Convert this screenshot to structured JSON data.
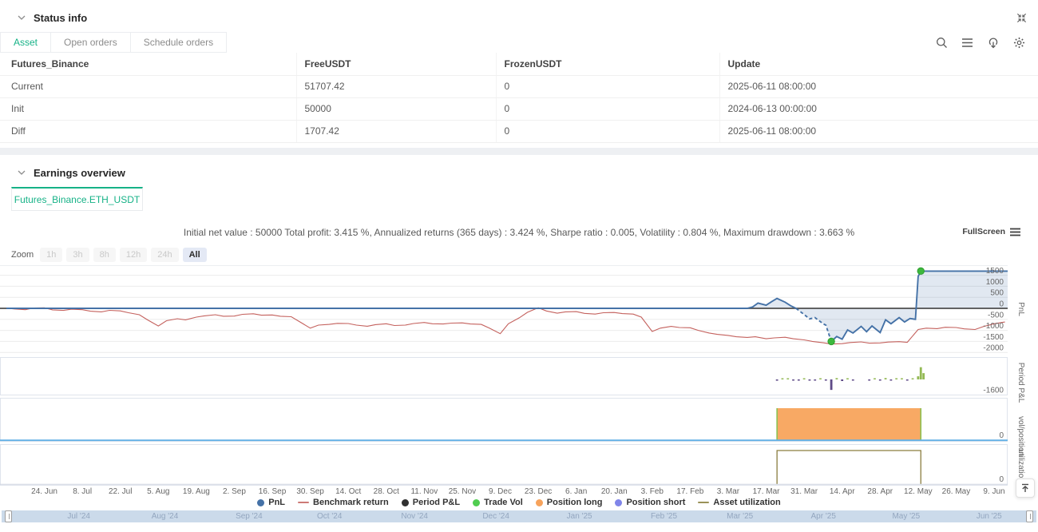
{
  "accent": "#16b287",
  "status_section": {
    "title": "Status info",
    "tabs": [
      {
        "label": "Asset",
        "active": true
      },
      {
        "label": "Open orders",
        "active": false
      },
      {
        "label": "Schedule orders",
        "active": false
      }
    ],
    "toolbar_icons": [
      "search-icon",
      "list-icon",
      "cloud-download-icon",
      "settings-icon"
    ],
    "expand_icon": "expand-icon",
    "table": {
      "columns": [
        "Futures_Binance",
        "FreeUSDT",
        "FrozenUSDT",
        "Update"
      ],
      "rows": [
        {
          "name": "Current",
          "name_color": "blue",
          "free": "51707.42",
          "free_color": "",
          "frozen": "0",
          "update": "2025-06-11 08:00:00"
        },
        {
          "name": "Init",
          "name_color": "",
          "free": "50000",
          "free_color": "",
          "frozen": "0",
          "update": "2024-06-13 00:00:00"
        },
        {
          "name": "Diff",
          "name_color": "red",
          "free": "1707.42",
          "free_color": "red",
          "frozen": "0",
          "update": "2025-06-11 08:00:00"
        }
      ]
    }
  },
  "earnings_section": {
    "title": "Earnings overview",
    "tab": "Futures_Binance.ETH_USDT",
    "stats": "Initial net value : 50000 Total profit: 3.415 %, Annualized returns (365 days) : 3.424 %, Sharpe ratio : 0.005, Volatility : 0.804 %, Maximum drawdown : 3.663 %",
    "fullscreen_label": "FullScreen",
    "zoom": {
      "label": "Zoom",
      "options": [
        "1h",
        "3h",
        "8h",
        "12h",
        "24h",
        "All"
      ],
      "active": "All"
    }
  },
  "chart_data": {
    "type": "line",
    "x_domain": [
      "2024-06-10",
      "2025-06-14"
    ],
    "x_ticks": [
      {
        "date": "2024-06-24",
        "label": "24. Jun"
      },
      {
        "date": "2024-07-08",
        "label": "8. Jul"
      },
      {
        "date": "2024-07-22",
        "label": "22. Jul"
      },
      {
        "date": "2024-08-05",
        "label": "5. Aug"
      },
      {
        "date": "2024-08-19",
        "label": "19. Aug"
      },
      {
        "date": "2024-09-02",
        "label": "2. Sep"
      },
      {
        "date": "2024-09-16",
        "label": "16. Sep"
      },
      {
        "date": "2024-09-30",
        "label": "30. Sep"
      },
      {
        "date": "2024-10-14",
        "label": "14. Oct"
      },
      {
        "date": "2024-10-28",
        "label": "28. Oct"
      },
      {
        "date": "2024-11-11",
        "label": "11. Nov"
      },
      {
        "date": "2024-11-25",
        "label": "25. Nov"
      },
      {
        "date": "2024-12-09",
        "label": "9. Dec"
      },
      {
        "date": "2024-12-23",
        "label": "23. Dec"
      },
      {
        "date": "2025-01-06",
        "label": "6. Jan"
      },
      {
        "date": "2025-01-20",
        "label": "20. Jan"
      },
      {
        "date": "2025-02-03",
        "label": "3. Feb"
      },
      {
        "date": "2025-02-17",
        "label": "17. Feb"
      },
      {
        "date": "2025-03-03",
        "label": "3. Mar"
      },
      {
        "date": "2025-03-17",
        "label": "17. Mar"
      },
      {
        "date": "2025-03-31",
        "label": "31. Mar"
      },
      {
        "date": "2025-04-14",
        "label": "14. Apr"
      },
      {
        "date": "2025-04-28",
        "label": "28. Apr"
      },
      {
        "date": "2025-05-12",
        "label": "12. May"
      },
      {
        "date": "2025-05-26",
        "label": "26. May"
      },
      {
        "date": "2025-06-09",
        "label": "9. Jun"
      }
    ],
    "pnl_pane": {
      "axis_title": "PnL",
      "yticks": [
        1500,
        1000,
        500,
        0,
        -500,
        -1000,
        -1500,
        -2000
      ],
      "zero_line_color": "#4d4d4d",
      "pnl": {
        "name": "PnL",
        "color": "#4572a7",
        "fill": "rgba(69,114,167,0.16)",
        "dash_range": [
          "2025-03-28",
          "2025-04-10"
        ],
        "markers": [
          [
            "2025-04-10",
            -1500
          ],
          [
            "2025-05-13",
            1690
          ]
        ],
        "marker_color": "#3db83d",
        "points": [
          [
            "2024-06-10",
            0
          ],
          [
            "2025-03-10",
            0
          ],
          [
            "2025-03-12",
            60
          ],
          [
            "2025-03-14",
            240
          ],
          [
            "2025-03-17",
            140
          ],
          [
            "2025-03-19",
            300
          ],
          [
            "2025-03-21",
            450
          ],
          [
            "2025-03-24",
            280
          ],
          [
            "2025-03-26",
            120
          ],
          [
            "2025-03-28",
            0
          ],
          [
            "2025-03-31",
            -280
          ],
          [
            "2025-04-02",
            -480
          ],
          [
            "2025-04-04",
            -420
          ],
          [
            "2025-04-07",
            -700
          ],
          [
            "2025-04-08",
            -760
          ],
          [
            "2025-04-10",
            -1500
          ],
          [
            "2025-04-12",
            -1280
          ],
          [
            "2025-04-14",
            -1400
          ],
          [
            "2025-04-16",
            -980
          ],
          [
            "2025-04-18",
            -1120
          ],
          [
            "2025-04-21",
            -820
          ],
          [
            "2025-04-23",
            -1060
          ],
          [
            "2025-04-25",
            -800
          ],
          [
            "2025-04-28",
            -1100
          ],
          [
            "2025-04-30",
            -520
          ],
          [
            "2025-05-02",
            -700
          ],
          [
            "2025-05-05",
            -420
          ],
          [
            "2025-05-07",
            -620
          ],
          [
            "2025-05-09",
            -460
          ],
          [
            "2025-05-11",
            -500
          ],
          [
            "2025-05-12",
            1450
          ],
          [
            "2025-05-13",
            1690
          ],
          [
            "2025-06-14",
            1690
          ]
        ]
      },
      "benchmark": {
        "name": "Benchmark return",
        "color": "#c4615d",
        "points": [
          [
            "2024-06-10",
            10
          ],
          [
            "2024-06-13",
            -30
          ],
          [
            "2024-06-17",
            -60
          ],
          [
            "2024-06-20",
            15
          ],
          [
            "2024-06-24",
            25
          ],
          [
            "2024-06-27",
            -70
          ],
          [
            "2024-07-01",
            -95
          ],
          [
            "2024-07-04",
            -40
          ],
          [
            "2024-07-08",
            -60
          ],
          [
            "2024-07-11",
            -130
          ],
          [
            "2024-07-15",
            -160
          ],
          [
            "2024-07-18",
            -90
          ],
          [
            "2024-07-22",
            -115
          ],
          [
            "2024-07-25",
            -200
          ],
          [
            "2024-07-29",
            -290
          ],
          [
            "2024-08-01",
            -520
          ],
          [
            "2024-08-05",
            -800
          ],
          [
            "2024-08-08",
            -560
          ],
          [
            "2024-08-12",
            -470
          ],
          [
            "2024-08-15",
            -520
          ],
          [
            "2024-08-19",
            -400
          ],
          [
            "2024-08-22",
            -340
          ],
          [
            "2024-08-26",
            -290
          ],
          [
            "2024-08-29",
            -360
          ],
          [
            "2024-09-02",
            -350
          ],
          [
            "2024-09-05",
            -270
          ],
          [
            "2024-09-09",
            -245
          ],
          [
            "2024-09-12",
            -310
          ],
          [
            "2024-09-16",
            -300
          ],
          [
            "2024-09-19",
            -360
          ],
          [
            "2024-09-23",
            -380
          ],
          [
            "2024-09-26",
            -600
          ],
          [
            "2024-09-30",
            -900
          ],
          [
            "2024-10-03",
            -760
          ],
          [
            "2024-10-07",
            -730
          ],
          [
            "2024-10-10",
            -680
          ],
          [
            "2024-10-14",
            -690
          ],
          [
            "2024-10-17",
            -760
          ],
          [
            "2024-10-21",
            -810
          ],
          [
            "2024-10-24",
            -740
          ],
          [
            "2024-10-28",
            -700
          ],
          [
            "2024-10-31",
            -780
          ],
          [
            "2024-11-04",
            -760
          ],
          [
            "2024-11-07",
            -690
          ],
          [
            "2024-11-11",
            -640
          ],
          [
            "2024-11-14",
            -700
          ],
          [
            "2024-11-18",
            -710
          ],
          [
            "2024-11-21",
            -670
          ],
          [
            "2024-11-25",
            -660
          ],
          [
            "2024-11-28",
            -710
          ],
          [
            "2024-12-02",
            -730
          ],
          [
            "2024-12-05",
            -900
          ],
          [
            "2024-12-09",
            -1150
          ],
          [
            "2024-12-12",
            -700
          ],
          [
            "2024-12-16",
            -430
          ],
          [
            "2024-12-19",
            -180
          ],
          [
            "2024-12-23",
            30
          ],
          [
            "2024-12-26",
            -120
          ],
          [
            "2024-12-30",
            -220
          ],
          [
            "2025-01-02",
            -160
          ],
          [
            "2025-01-06",
            -150
          ],
          [
            "2025-01-09",
            -230
          ],
          [
            "2025-01-13",
            -260
          ],
          [
            "2025-01-16",
            -200
          ],
          [
            "2025-01-20",
            -190
          ],
          [
            "2025-01-23",
            -240
          ],
          [
            "2025-01-27",
            -260
          ],
          [
            "2025-01-30",
            -400
          ],
          [
            "2025-02-03",
            -1050
          ],
          [
            "2025-02-06",
            -900
          ],
          [
            "2025-02-10",
            -820
          ],
          [
            "2025-02-13",
            -870
          ],
          [
            "2025-02-17",
            -880
          ],
          [
            "2025-02-20",
            -1000
          ],
          [
            "2025-02-24",
            -1120
          ],
          [
            "2025-02-27",
            -1180
          ],
          [
            "2025-03-03",
            -1230
          ],
          [
            "2025-03-06",
            -1290
          ],
          [
            "2025-03-10",
            -1320
          ],
          [
            "2025-03-13",
            -1290
          ],
          [
            "2025-03-17",
            -1380
          ],
          [
            "2025-03-20",
            -1340
          ],
          [
            "2025-03-24",
            -1310
          ],
          [
            "2025-03-27",
            -1380
          ],
          [
            "2025-03-31",
            -1430
          ],
          [
            "2025-04-03",
            -1500
          ],
          [
            "2025-04-07",
            -1560
          ],
          [
            "2025-04-10",
            -1620
          ],
          [
            "2025-04-14",
            -1600
          ],
          [
            "2025-04-17",
            -1550
          ],
          [
            "2025-04-21",
            -1520
          ],
          [
            "2025-04-24",
            -1580
          ],
          [
            "2025-04-28",
            -1570
          ],
          [
            "2025-05-01",
            -1530
          ],
          [
            "2025-05-05",
            -1510
          ],
          [
            "2025-05-08",
            -1540
          ],
          [
            "2025-05-12",
            -960
          ],
          [
            "2025-05-15",
            -900
          ],
          [
            "2025-05-19",
            -920
          ],
          [
            "2025-05-22",
            -860
          ],
          [
            "2025-05-26",
            -870
          ],
          [
            "2025-05-29",
            -930
          ],
          [
            "2025-06-02",
            -960
          ],
          [
            "2025-06-05",
            -830
          ],
          [
            "2025-06-09",
            -700
          ],
          [
            "2025-06-13",
            -620
          ]
        ]
      }
    },
    "period_pane": {
      "axis_title": "Period P&L",
      "ytick": -1600,
      "pos_color": "#93b954",
      "neg_color": "#5e4a87",
      "bars": [
        [
          "2025-03-21",
          -180
        ],
        [
          "2025-03-23",
          130
        ],
        [
          "2025-03-25",
          170
        ],
        [
          "2025-03-27",
          -100
        ],
        [
          "2025-03-29",
          -150
        ],
        [
          "2025-03-31",
          110
        ],
        [
          "2025-04-02",
          -170
        ],
        [
          "2025-04-04",
          -120
        ],
        [
          "2025-04-06",
          150
        ],
        [
          "2025-04-08",
          -140
        ],
        [
          "2025-04-10",
          -1500
        ],
        [
          "2025-04-12",
          190
        ],
        [
          "2025-04-14",
          -230
        ],
        [
          "2025-04-16",
          170
        ],
        [
          "2025-04-18",
          -150
        ],
        [
          "2025-04-24",
          -120
        ],
        [
          "2025-04-26",
          150
        ],
        [
          "2025-04-28",
          -170
        ],
        [
          "2025-04-30",
          200
        ],
        [
          "2025-05-02",
          -130
        ],
        [
          "2025-05-04",
          120
        ],
        [
          "2025-05-06",
          160
        ],
        [
          "2025-05-08",
          -140
        ],
        [
          "2025-05-10",
          100
        ],
        [
          "2025-05-12",
          450
        ],
        [
          "2025-05-13",
          1750
        ],
        [
          "2025-05-14",
          900
        ]
      ]
    },
    "vol_pane": {
      "axis_title": "vol/position",
      "ytick": 0,
      "position_long": {
        "name": "Position long",
        "color": "#f8a964",
        "edge_color": "#8cc152",
        "range": [
          "2025-03-21",
          "2025-05-13"
        ]
      },
      "position_short": {
        "name": "Position short",
        "baseline_color": "#63b1e6",
        "value": 0
      }
    },
    "util_pane": {
      "axis_title": "utilization",
      "ytick": 0,
      "utilization": {
        "name": "Asset utilization",
        "color": "#8a7d3f",
        "range": [
          "2025-03-21",
          "2025-05-13"
        ]
      }
    },
    "legend": [
      {
        "label": "PnL",
        "shape": "circle",
        "color": "#4572a7"
      },
      {
        "label": "Benchmark return",
        "shape": "line",
        "color": "#cd7a76"
      },
      {
        "label": "Period P&L",
        "shape": "circle",
        "color": "#303030"
      },
      {
        "label": "Trade Vol",
        "shape": "circle",
        "color": "#50cd50"
      },
      {
        "label": "Position long",
        "shape": "circle",
        "color": "#f7a35c"
      },
      {
        "label": "Position short",
        "shape": "circle",
        "color": "#8085e9"
      },
      {
        "label": "Asset utilization",
        "shape": "line",
        "color": "#9a9258"
      }
    ],
    "navigator_months": [
      {
        "date": "2024-07-01",
        "label": "Jul '24"
      },
      {
        "date": "2024-08-01",
        "label": "Aug '24"
      },
      {
        "date": "2024-09-01",
        "label": "Sep '24"
      },
      {
        "date": "2024-10-01",
        "label": "Oct '24"
      },
      {
        "date": "2024-11-01",
        "label": "Nov '24"
      },
      {
        "date": "2024-12-01",
        "label": "Dec '24"
      },
      {
        "date": "2025-01-01",
        "label": "Jan '25"
      },
      {
        "date": "2025-02-01",
        "label": "Feb '25"
      },
      {
        "date": "2025-03-01",
        "label": "Mar '25"
      },
      {
        "date": "2025-04-01",
        "label": "Apr '25"
      },
      {
        "date": "2025-05-01",
        "label": "May '25"
      },
      {
        "date": "2025-06-01",
        "label": "Jun '25"
      }
    ]
  }
}
